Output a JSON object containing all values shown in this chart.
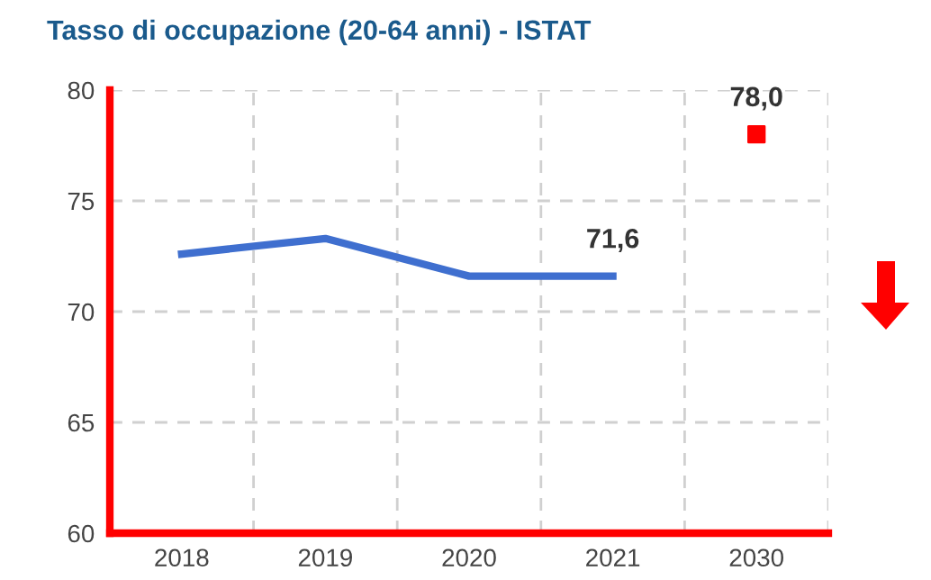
{
  "chart_data": {
    "type": "line",
    "title": "Tasso di occupazione (20-64 anni) - ISTAT",
    "categories": [
      "2018",
      "2019",
      "2020",
      "2021",
      "2030"
    ],
    "series": [
      {
        "color": "#3f6fcf",
        "values": [
          72.6,
          73.3,
          71.6,
          71.6,
          null
        ],
        "value_labels": [
          null,
          null,
          null,
          "71,6",
          null
        ],
        "marker": "none"
      },
      {
        "type": "scatter",
        "color": "#ff0000",
        "values": [
          null,
          null,
          null,
          null,
          78.0
        ],
        "value_labels": [
          null,
          null,
          null,
          null,
          "78,0"
        ],
        "marker": "square"
      }
    ],
    "ylim": [
      60,
      80
    ],
    "yticks": [
      60,
      65,
      70,
      75,
      80
    ],
    "grid": true,
    "legend": false
  }
}
